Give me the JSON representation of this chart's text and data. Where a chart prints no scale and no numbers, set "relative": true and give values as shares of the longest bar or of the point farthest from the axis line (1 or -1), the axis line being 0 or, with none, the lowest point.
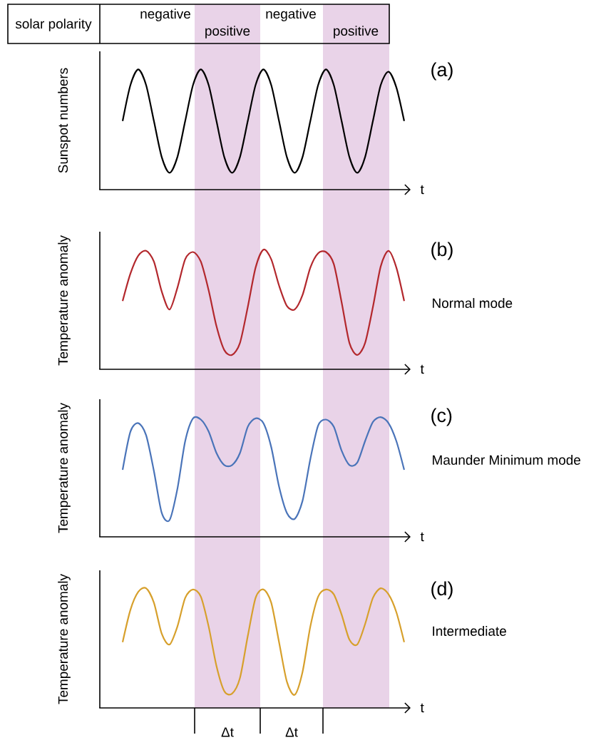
{
  "chart_data": [
    {
      "type": "line",
      "xlabel": "t",
      "ylabel": "Sunspot numbers",
      "relative": true,
      "categories": [
        null,
        null,
        null,
        null,
        null,
        null,
        null,
        null,
        null,
        null,
        null,
        null,
        null,
        null,
        null,
        null,
        null,
        null,
        null,
        null,
        null,
        null,
        null,
        null,
        null,
        null,
        null,
        null,
        null,
        null,
        null,
        null,
        null,
        null,
        null,
        null,
        null
      ],
      "series": [
        {
          "color": "#000000",
          "values": [
            0.57,
            0.87,
            1.0,
            0.87,
            0.57,
            0.27,
            0.14,
            0.27,
            0.57,
            0.87,
            1.0,
            0.87,
            0.57,
            0.27,
            0.14,
            0.27,
            0.57,
            0.87,
            1.0,
            0.87,
            0.57,
            0.27,
            0.14,
            0.27,
            0.57,
            0.87,
            1.0,
            0.87,
            0.57,
            0.27,
            0.14,
            0.27,
            0.57,
            0.87,
            0.98,
            0.85,
            0.57
          ]
        }
      ],
      "annotations": [
        "(a)",
        "solar polarity",
        "negative",
        "positive",
        "negative",
        "positive"
      ]
    },
    {
      "type": "line",
      "xlabel": "t",
      "ylabel": "Temperature anomaly",
      "relative": true,
      "categories": [
        null,
        null,
        null,
        null,
        null,
        null,
        null,
        null,
        null,
        null,
        null,
        null,
        null,
        null,
        null,
        null,
        null,
        null,
        null,
        null,
        null,
        null,
        null,
        null,
        null,
        null,
        null,
        null,
        null,
        null,
        null,
        null,
        null,
        null,
        null,
        null,
        null
      ],
      "series": [
        {
          "color": "#b3282d",
          "values": [
            0.57,
            0.8,
            0.95,
            0.99,
            0.9,
            0.65,
            0.5,
            0.68,
            0.92,
            0.98,
            0.9,
            0.66,
            0.36,
            0.16,
            0.12,
            0.22,
            0.52,
            0.85,
            1.0,
            0.92,
            0.7,
            0.53,
            0.5,
            0.62,
            0.85,
            0.97,
            0.98,
            0.88,
            0.56,
            0.22,
            0.12,
            0.22,
            0.52,
            0.86,
            0.99,
            0.85,
            0.57
          ]
        }
      ],
      "annotations": [
        "(b)",
        "Normal mode"
      ]
    },
    {
      "type": "line",
      "xlabel": "t",
      "ylabel": "Temperature anomaly",
      "relative": true,
      "categories": [
        null,
        null,
        null,
        null,
        null,
        null,
        null,
        null,
        null,
        null,
        null,
        null,
        null,
        null,
        null,
        null,
        null,
        null,
        null,
        null,
        null,
        null,
        null,
        null,
        null,
        null,
        null,
        null,
        null,
        null,
        null,
        null,
        null,
        null,
        null,
        null,
        null
      ],
      "series": [
        {
          "color": "#4a74b9",
          "values": [
            0.56,
            0.88,
            0.95,
            0.85,
            0.55,
            0.2,
            0.14,
            0.4,
            0.8,
            0.99,
            0.98,
            0.88,
            0.7,
            0.6,
            0.6,
            0.7,
            0.92,
            0.99,
            0.95,
            0.75,
            0.42,
            0.2,
            0.15,
            0.3,
            0.65,
            0.93,
            0.98,
            0.92,
            0.72,
            0.6,
            0.62,
            0.8,
            0.96,
            1.0,
            0.95,
            0.8,
            0.56
          ]
        }
      ],
      "annotations": [
        "(c)",
        "Maunder Minimum mode"
      ]
    },
    {
      "type": "line",
      "xlabel": "t",
      "ylabel": "Temperature anomaly",
      "relative": true,
      "categories": [
        null,
        null,
        null,
        null,
        null,
        null,
        null,
        null,
        null,
        null,
        null,
        null,
        null,
        null,
        null,
        null,
        null,
        null,
        null,
        null,
        null,
        null,
        null,
        null,
        null,
        null,
        null,
        null,
        null,
        null,
        null,
        null,
        null,
        null,
        null,
        null,
        null
      ],
      "series": [
        {
          "color": "#d7a02c",
          "values": [
            0.55,
            0.82,
            0.97,
            1.0,
            0.88,
            0.62,
            0.53,
            0.68,
            0.92,
            0.99,
            0.93,
            0.68,
            0.35,
            0.14,
            0.12,
            0.25,
            0.6,
            0.92,
            0.99,
            0.88,
            0.55,
            0.22,
            0.11,
            0.3,
            0.68,
            0.93,
            0.99,
            0.95,
            0.78,
            0.57,
            0.53,
            0.7,
            0.92,
            1.0,
            0.95,
            0.8,
            0.55
          ]
        }
      ],
      "annotations": [
        "(d)",
        "Intermediate",
        "Δt",
        "Δt"
      ]
    }
  ]
}
